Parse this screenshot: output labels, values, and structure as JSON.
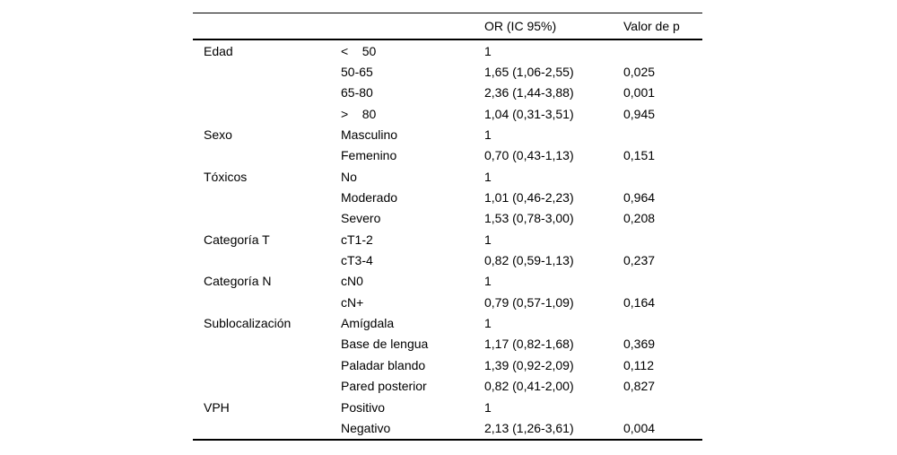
{
  "page": {
    "background": "#ffffff",
    "text_color": "#000000",
    "rule_color": "#000000"
  },
  "table": {
    "header": {
      "variable_label": "",
      "level_label": "",
      "or_label": "OR (IC 95%)",
      "p_label": "Valor de p"
    },
    "rows": [
      {
        "variable": "Edad",
        "level": "<    50",
        "or": "1",
        "p": ""
      },
      {
        "variable": "",
        "level": "50-65",
        "or": "1,65 (1,06-2,55)",
        "p": "0,025"
      },
      {
        "variable": "",
        "level": "65-80",
        "or": "2,36 (1,44-3,88)",
        "p": "0,001"
      },
      {
        "variable": "",
        "level": ">    80",
        "or": "1,04 (0,31-3,51)",
        "p": "0,945"
      },
      {
        "variable": "Sexo",
        "level": "Masculino",
        "or": "1",
        "p": ""
      },
      {
        "variable": "",
        "level": "Femenino",
        "or": "0,70 (0,43-1,13)",
        "p": "0,151"
      },
      {
        "variable": "Tóxicos",
        "level": "No",
        "or": "1",
        "p": ""
      },
      {
        "variable": "",
        "level": "Moderado",
        "or": "1,01 (0,46-2,23)",
        "p": "0,964"
      },
      {
        "variable": "",
        "level": "Severo",
        "or": "1,53 (0,78-3,00)",
        "p": "0,208"
      },
      {
        "variable": "Categoría T",
        "level": "cT1-2",
        "or": "1",
        "p": ""
      },
      {
        "variable": "",
        "level": "cT3-4",
        "or": "0,82 (0,59-1,13)",
        "p": "0,237"
      },
      {
        "variable": "Categoría N",
        "level": "cN0",
        "or": "1",
        "p": ""
      },
      {
        "variable": "",
        "level": "cN+",
        "or": "0,79 (0,57-1,09)",
        "p": "0,164"
      },
      {
        "variable": "Sublocalización",
        "level": "Amígdala",
        "or": "1",
        "p": ""
      },
      {
        "variable": "",
        "level": "Base de lengua",
        "or": "1,17 (0,82-1,68)",
        "p": "0,369"
      },
      {
        "variable": "",
        "level": "Paladar blando",
        "or": "1,39 (0,92-2,09)",
        "p": "0,112"
      },
      {
        "variable": "",
        "level": "Pared posterior",
        "or": "0,82 (0,41-2,00)",
        "p": "0,827"
      },
      {
        "variable": "VPH",
        "level": "Positivo",
        "or": "1",
        "p": ""
      },
      {
        "variable": "",
        "level": "Negativo",
        "or": "2,13 (1,26-3,61)",
        "p": "0,004"
      }
    ]
  }
}
